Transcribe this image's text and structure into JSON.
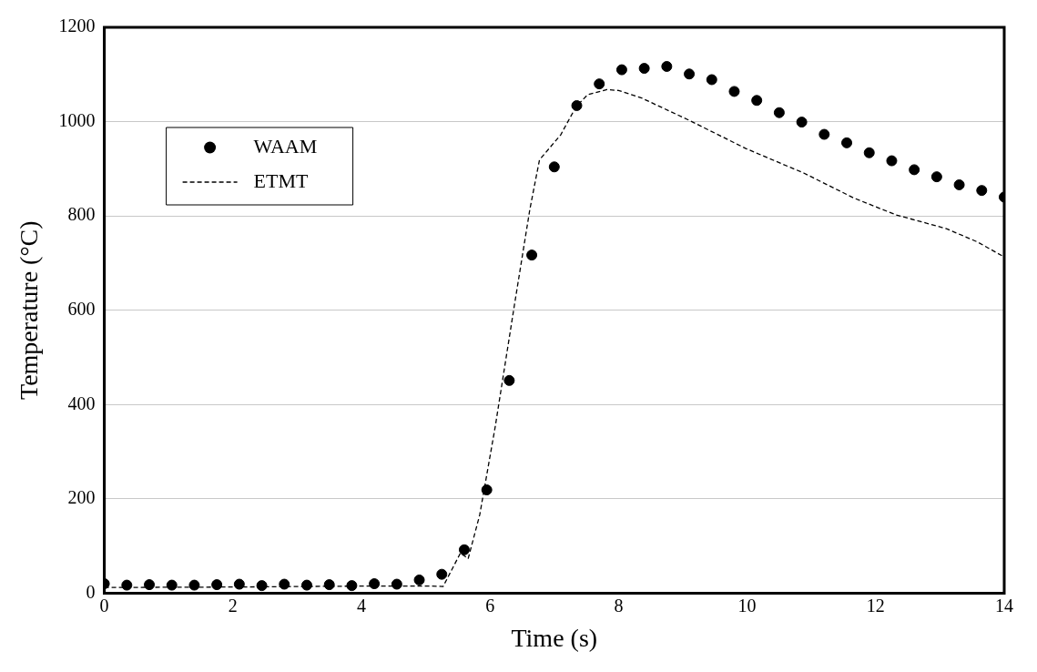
{
  "chart_data": {
    "type": "scatter",
    "xlabel": "Time (s)",
    "ylabel": "Temperature (°C)",
    "xlim": [
      0,
      14
    ],
    "xticks": [
      0,
      2,
      4,
      6,
      8,
      10,
      12,
      14
    ],
    "ylim": [
      0,
      1200
    ],
    "yticks": [
      0,
      200,
      400,
      600,
      800,
      1000,
      1200
    ],
    "grid": "y",
    "legend": "top left",
    "series": [
      {
        "name": "WAAM",
        "type": "scatter",
        "marker": "circle",
        "color": "#000000",
        "x": [
          0,
          0.35,
          0.7,
          1.05,
          1.4,
          1.75,
          2.1,
          2.45,
          2.8,
          3.15,
          3.5,
          3.85,
          4.2,
          4.55,
          4.9,
          5.25,
          5.6,
          5.95,
          6.3,
          6.65,
          7.0,
          7.35,
          7.7,
          8.05,
          8.4,
          8.75,
          9.1,
          9.45,
          9.8,
          10.15,
          10.5,
          10.85,
          11.2,
          11.55,
          11.9,
          12.25,
          12.6,
          12.95,
          13.3,
          13.65,
          14.0
        ],
        "values": [
          20,
          17,
          18,
          17,
          17,
          18,
          19,
          16,
          19,
          17,
          18,
          16,
          20,
          19,
          28,
          40,
          92,
          219,
          451,
          717,
          904,
          1034,
          1080,
          1110,
          1113,
          1117,
          1101,
          1089,
          1064,
          1045,
          1019,
          999,
          973,
          955,
          934,
          917,
          898,
          883,
          866,
          854,
          840
        ]
      },
      {
        "name": "ETMT",
        "type": "line",
        "marker": "none",
        "line_style": "dashed",
        "color": "#000000",
        "x": [
          0,
          2,
          4,
          5.1,
          5.27,
          5.54,
          5.66,
          5.84,
          6.08,
          6.38,
          6.62,
          6.77,
          7.1,
          7.34,
          7.52,
          7.82,
          8.0,
          8.36,
          9.08,
          9.98,
          10.88,
          11.66,
          12.32,
          12.62,
          13.1,
          13.58,
          14.0
        ],
        "values": [
          12,
          13,
          15,
          15,
          14,
          85,
          73,
          166,
          352,
          611,
          814,
          919,
          972,
          1032,
          1057,
          1068,
          1066,
          1050,
          1004,
          943,
          891,
          838,
          802,
          791,
          773,
          745,
          713
        ]
      }
    ]
  }
}
